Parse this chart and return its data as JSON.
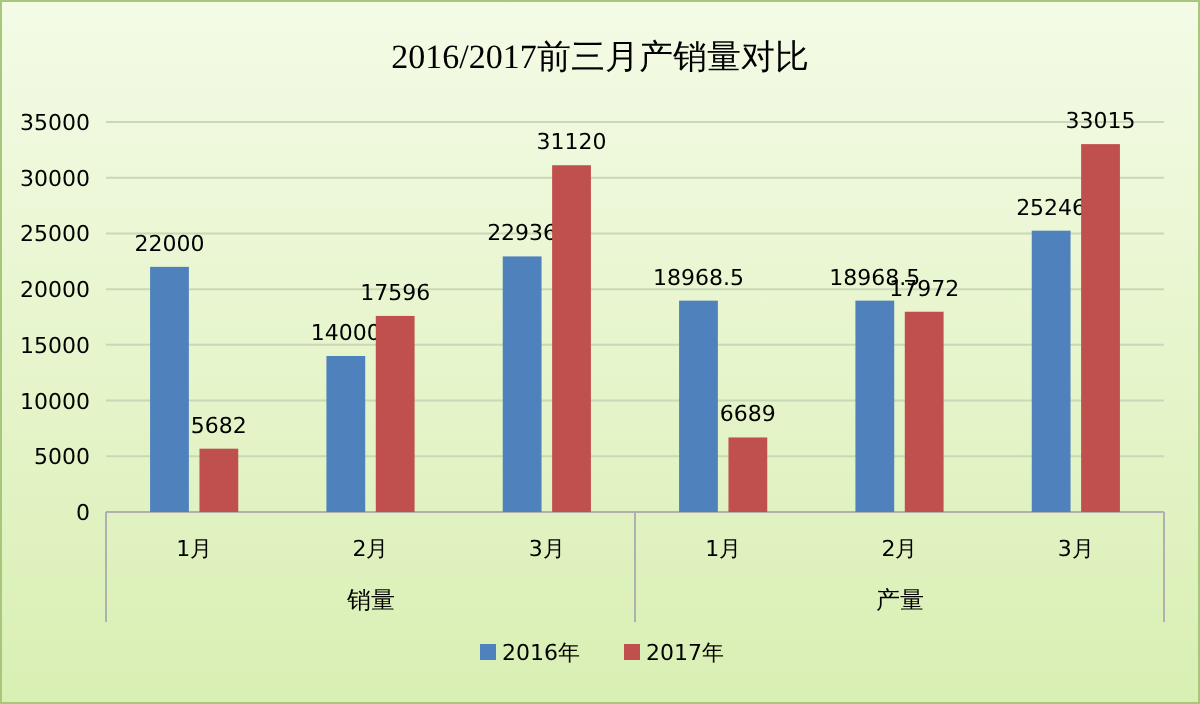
{
  "chart_data": {
    "type": "bar",
    "title": "2016/2017前三月产销量对比",
    "categories": [
      "1月",
      "2月",
      "3月",
      "1月",
      "2月",
      "3月"
    ],
    "series": [
      {
        "name": "2016年",
        "color": "#4f81bd",
        "values": [
          22000,
          14000,
          22936,
          18968.5,
          18968.5,
          25246
        ]
      },
      {
        "name": "2017年",
        "color": "#c0504d",
        "values": [
          5682,
          17596,
          31120,
          6689,
          17972,
          33015
        ]
      }
    ],
    "ylim": [
      0,
      35000
    ],
    "yticks": [
      0,
      5000,
      10000,
      15000,
      20000,
      25000,
      30000,
      35000
    ],
    "grid": "y",
    "legend": "bottom",
    "data_labels": true,
    "annotations": [
      "销量",
      "产量"
    ]
  }
}
